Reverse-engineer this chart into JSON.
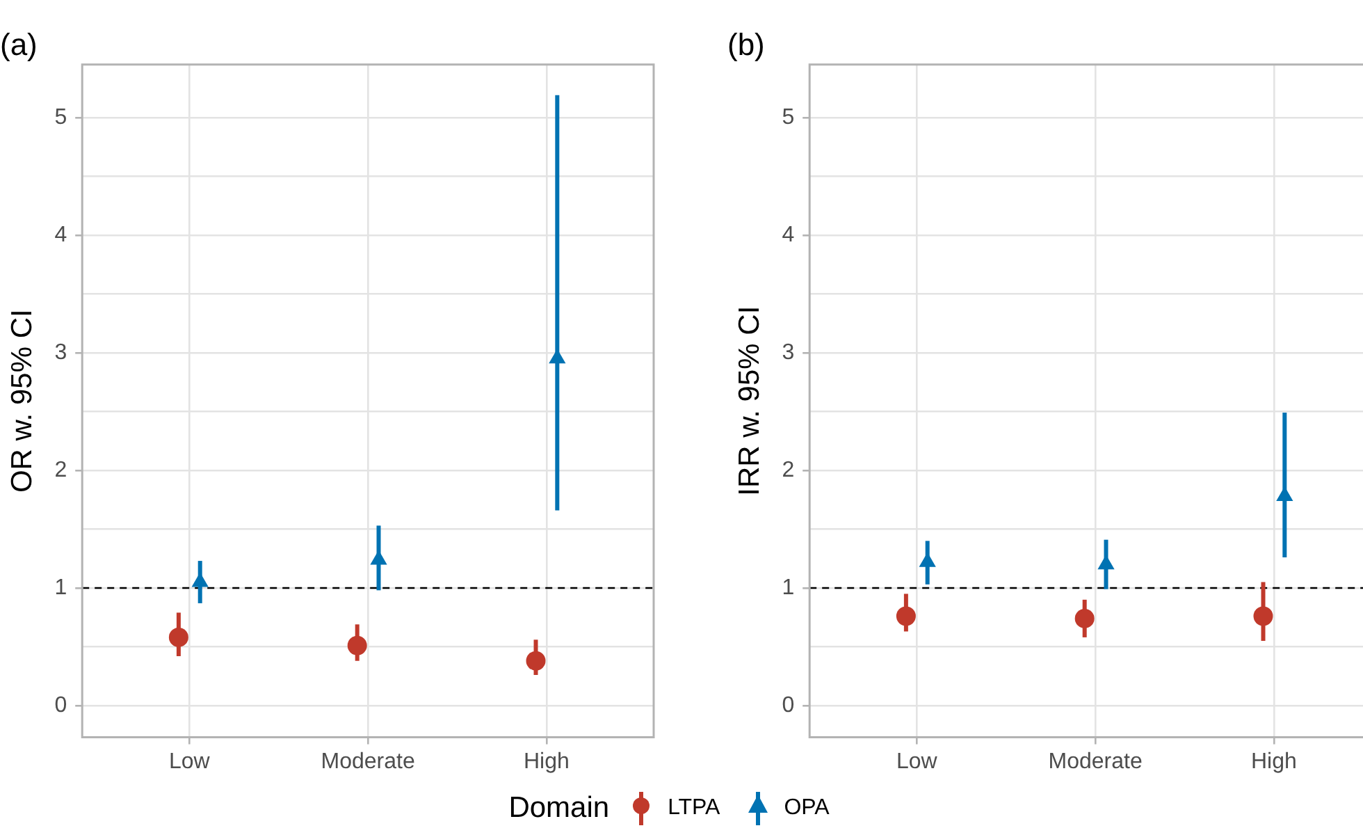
{
  "chart_data": [
    {
      "type": "scatter",
      "title": "(a)",
      "ylabel": "OR w. 95% CI",
      "legend_title": "Domain",
      "legend": "bottom",
      "grid": true,
      "categories": [
        "Low",
        "Moderate",
        "High"
      ],
      "ylim": [
        -0.27,
        5.45
      ],
      "yticks": [
        0,
        {
          "value": 0.5,
          "label": null
        },
        1,
        {
          "value": 1.5,
          "label": null
        },
        2,
        {
          "value": 2.5,
          "label": null
        },
        3,
        {
          "value": 3.5,
          "label": null
        },
        4,
        {
          "value": 4.5,
          "label": null
        },
        5
      ],
      "ref_lines": [
        {
          "axis": "y",
          "value": 1,
          "color": "#000000",
          "line_style": "dashed"
        }
      ],
      "series": [
        {
          "name": "LTPA",
          "color": "#c0392b",
          "marker": "circle",
          "values": [
            0.58,
            0.51,
            0.38
          ],
          "errors": [
            [
              0.42,
              0.79
            ],
            [
              0.38,
              0.69
            ],
            [
              0.26,
              0.56
            ]
          ]
        },
        {
          "name": "OPA",
          "color": "#0072b2",
          "marker": "triangle",
          "values": [
            1.05,
            1.24,
            2.95
          ],
          "errors": [
            [
              0.87,
              1.23
            ],
            [
              0.98,
              1.53
            ],
            [
              1.66,
              5.19
            ]
          ]
        }
      ]
    },
    {
      "type": "scatter",
      "title": "(b)",
      "ylabel": "IRR w. 95% CI",
      "grid": true,
      "categories": [
        "Low",
        "Moderate",
        "High"
      ],
      "ylim": [
        -0.27,
        5.45
      ],
      "yticks": [
        0,
        {
          "value": 0.5,
          "label": null
        },
        1,
        {
          "value": 1.5,
          "label": null
        },
        2,
        {
          "value": 2.5,
          "label": null
        },
        3,
        {
          "value": 3.5,
          "label": null
        },
        4,
        {
          "value": 4.5,
          "label": null
        },
        5
      ],
      "ref_lines": [
        {
          "axis": "y",
          "value": 1,
          "color": "#000000",
          "line_style": "dashed"
        }
      ],
      "series": [
        {
          "color": "#c0392b",
          "marker": "circle",
          "values": [
            0.76,
            0.74,
            0.76
          ],
          "errors": [
            [
              0.63,
              0.95
            ],
            [
              0.58,
              0.9
            ],
            [
              0.55,
              1.05
            ]
          ]
        },
        {
          "color": "#0072b2",
          "marker": "triangle",
          "values": [
            1.22,
            1.2,
            1.78
          ],
          "errors": [
            [
              1.03,
              1.4
            ],
            [
              0.99,
              1.41
            ],
            [
              1.26,
              2.49
            ]
          ]
        }
      ]
    }
  ]
}
